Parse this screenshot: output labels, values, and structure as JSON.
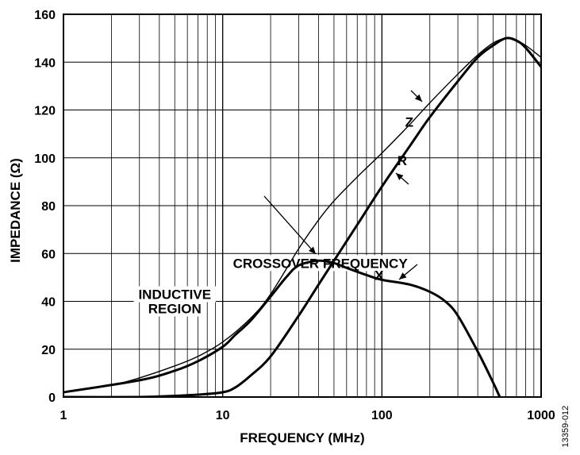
{
  "chart_data": {
    "type": "line",
    "xlabel": "FREQUENCY (MHz)",
    "ylabel": "IMPEDANCE (Ω)",
    "x_scale": "log",
    "xlim": [
      1,
      1000
    ],
    "ylim": [
      0,
      160
    ],
    "x_ticks": [
      "1",
      "10",
      "100",
      "1000"
    ],
    "y_ticks": [
      "0",
      "20",
      "40",
      "60",
      "80",
      "100",
      "120",
      "140",
      "160"
    ],
    "grid": true,
    "series": [
      {
        "name": "Z",
        "x": [
          1,
          2,
          3,
          5,
          7,
          10,
          15,
          20,
          30,
          40,
          50,
          70,
          100,
          150,
          200,
          300,
          400,
          500,
          600,
          700,
          800,
          1000
        ],
        "y": [
          2,
          5,
          8,
          13,
          17,
          23,
          33,
          43,
          62,
          74,
          82,
          92,
          102,
          114,
          123,
          135,
          143,
          148,
          150,
          149,
          147,
          142
        ]
      },
      {
        "name": "R",
        "x": [
          1,
          3,
          5,
          7,
          10,
          12,
          15,
          20,
          30,
          40,
          50,
          70,
          100,
          150,
          200,
          300,
          400,
          500,
          600,
          700,
          800,
          1000
        ],
        "y": [
          0,
          0,
          0.5,
          1,
          2,
          4,
          9,
          17,
          34,
          47,
          57,
          72,
          88,
          105,
          117,
          132,
          142,
          147,
          150,
          149,
          146,
          138
        ]
      },
      {
        "name": "X",
        "x": [
          1,
          3,
          5,
          7,
          10,
          12,
          15,
          20,
          25,
          30,
          40,
          50,
          60,
          80,
          100,
          150,
          200,
          250,
          300,
          400,
          500,
          550,
          600
        ],
        "y": [
          2,
          7,
          11,
          15,
          21,
          26,
          32,
          42,
          50,
          55,
          57,
          56,
          54,
          51,
          49,
          47,
          44,
          40,
          34,
          19,
          6,
          0,
          -6
        ]
      }
    ],
    "annotations": [
      {
        "text": "Z",
        "x": 140,
        "y": 113
      },
      {
        "text": "R",
        "x": 125,
        "y": 97
      },
      {
        "text": "X",
        "x": 90,
        "y": 49
      },
      {
        "text": "CROSSOVER FREQUENCY",
        "x": 41,
        "y": 54
      },
      {
        "text": "INDUCTIVE",
        "x": 5,
        "y": 41
      },
      {
        "text": "REGION",
        "x": 5,
        "y": 35
      }
    ],
    "figure_id": "13359-012",
    "colors": {
      "line": "#000000",
      "grid": "#000000",
      "background": "#ffffff"
    }
  }
}
